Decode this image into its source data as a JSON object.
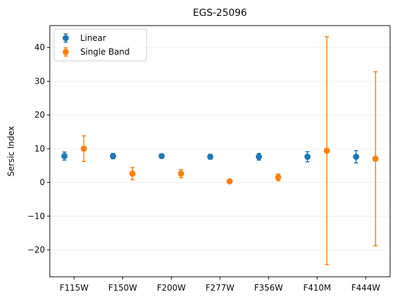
{
  "chart_data": {
    "type": "scatter",
    "title": "EGS-25096",
    "xlabel": "",
    "ylabel": "Sersic Index",
    "categories": [
      "F115W",
      "F150W",
      "F200W",
      "F277W",
      "F356W",
      "F410M",
      "F444W"
    ],
    "ylim": [
      -28,
      46.5
    ],
    "yticks": [
      -20,
      -10,
      0,
      10,
      20,
      30,
      40
    ],
    "ytick_labels": [
      "−20",
      "−10",
      "0",
      "10",
      "20",
      "30",
      "40"
    ],
    "grid": "horizontal",
    "legend_position": "top-left",
    "series": [
      {
        "name": "Linear",
        "color": "#1f77b4",
        "values": [
          7.8,
          7.8,
          7.8,
          7.6,
          7.6,
          7.6,
          7.6
        ],
        "errors": [
          1.2,
          0.8,
          0.6,
          0.7,
          1.0,
          1.5,
          1.8
        ]
      },
      {
        "name": "Single Band",
        "color": "#ff7f0e",
        "values": [
          10.0,
          2.6,
          2.6,
          0.3,
          1.5,
          9.4,
          7.0
        ],
        "errors": [
          3.8,
          1.8,
          1.2,
          0.4,
          1.0,
          33.8,
          25.8
        ]
      }
    ]
  }
}
